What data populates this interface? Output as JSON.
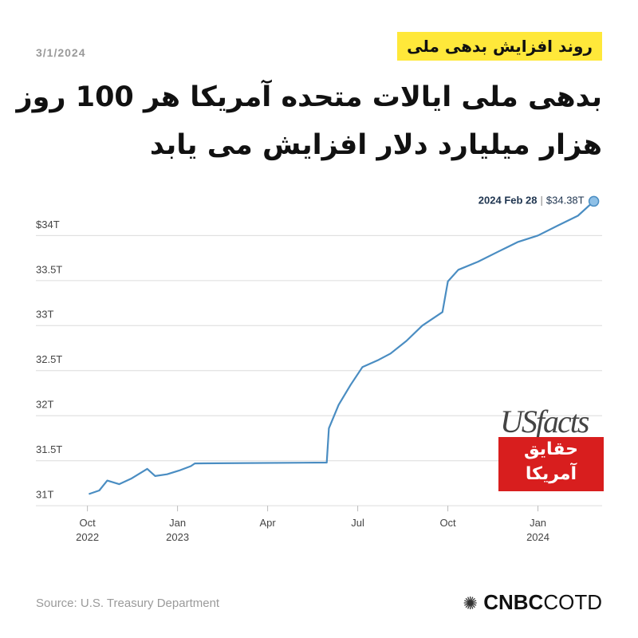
{
  "date": "3/1/2024",
  "kicker": "روند افزایش بدهی ملی",
  "title_lines": [
    "بدهی ملی ایالات متحده آمریکا هر 100 روز",
    "هزار میلیارد دلار افزایش می یابد"
  ],
  "source": "Source: U.S. Treasury Department",
  "logos": {
    "usfacts": "USfacts",
    "badge_lines": [
      "حقایق",
      "آمریکا"
    ],
    "cnbc": "CNBC",
    "cotd": "COTD"
  },
  "chart_data": {
    "type": "line",
    "color": "#4a8dc2",
    "grid": true,
    "x": [
      2022.754,
      2022.783,
      2022.805,
      2022.838,
      2022.871,
      2022.916,
      2022.938,
      2022.971,
      2023.004,
      2023.037,
      2023.048,
      2023.414,
      2023.42,
      2023.447,
      2023.48,
      2023.513,
      2023.558,
      2023.591,
      2023.635,
      2023.679,
      2023.735,
      2023.75,
      2023.779,
      2023.834,
      2023.889,
      2023.945,
      2024.0,
      2024.055,
      2024.111,
      2024.155
    ],
    "values": [
      31.13,
      31.17,
      31.28,
      31.24,
      31.3,
      31.41,
      31.33,
      31.35,
      31.39,
      31.44,
      31.47,
      31.48,
      31.86,
      32.12,
      32.34,
      32.54,
      32.62,
      32.69,
      32.83,
      33.0,
      33.15,
      33.49,
      33.62,
      33.71,
      33.82,
      33.93,
      34.0,
      34.11,
      34.22,
      34.38
    ],
    "xlim": [
      2022.607,
      2024.178
    ],
    "xticks": [
      {
        "value": 2022.75,
        "label": "Oct\n2022"
      },
      {
        "value": 2023.0,
        "label": "Jan\n2023"
      },
      {
        "value": 2023.25,
        "label": "Apr"
      },
      {
        "value": 2023.5,
        "label": "Jul"
      },
      {
        "value": 2023.75,
        "label": "Oct"
      },
      {
        "value": 2024.0,
        "label": "Jan\n2024"
      }
    ],
    "ylim": [
      30.86,
      34.49
    ],
    "yticks": [
      {
        "value": 31,
        "label": "31T"
      },
      {
        "value": 31.5,
        "label": "31.5T"
      },
      {
        "value": 32,
        "label": "32T"
      },
      {
        "value": 32.5,
        "label": "32.5T"
      },
      {
        "value": 33,
        "label": "33T"
      },
      {
        "value": 33.5,
        "label": "33.5T"
      },
      {
        "value": 34,
        "label": "$34T"
      }
    ],
    "annotation": {
      "date": "2024 Feb 28",
      "separator": "|",
      "value_label": "$34.38T"
    }
  }
}
